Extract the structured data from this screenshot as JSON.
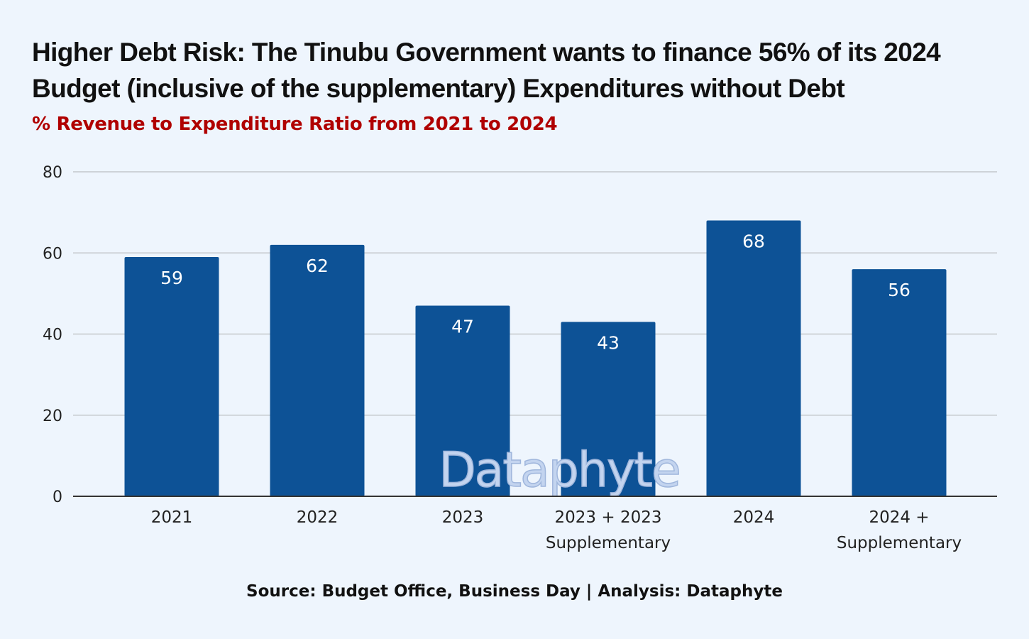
{
  "chart_data": {
    "type": "bar",
    "title": "Higher Debt Risk: The Tinubu Government wants to finance 56% of its 2024 Budget (inclusive of the supplementary) Expenditures without Debt",
    "subtitle": "% Revenue to Expenditure Ratio from 2021 to 2024",
    "categories": [
      [
        "2021"
      ],
      [
        "2022"
      ],
      [
        "2023"
      ],
      [
        "2023 + 2023",
        "Supplementary"
      ],
      [
        "2024"
      ],
      [
        "2024 +",
        "Supplementary"
      ]
    ],
    "values": [
      59,
      62,
      47,
      43,
      68,
      56
    ],
    "data_labels": [
      "59",
      "62",
      "47",
      "43",
      "68",
      "56"
    ],
    "yticks": [
      "0",
      "20",
      "40",
      "60",
      "80"
    ],
    "ylim": [
      0,
      80
    ],
    "grid": true,
    "bar_color": "#0d5296",
    "source": "Source: Budget Office, Business Day | Analysis: Dataphyte",
    "watermark": "Dataphyte"
  }
}
